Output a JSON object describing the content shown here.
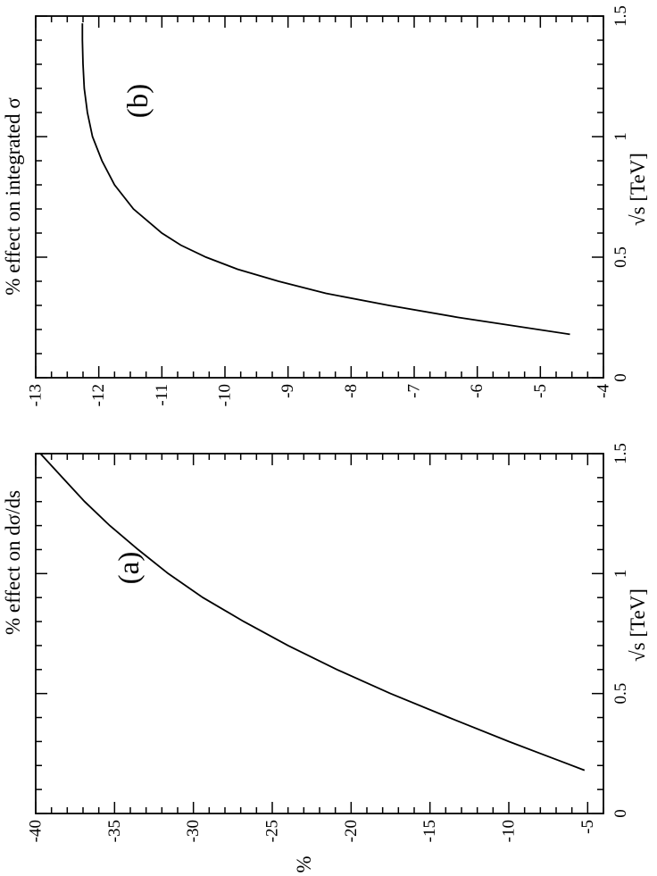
{
  "colors": {
    "background": "#ffffff",
    "ink": "#000000"
  },
  "chart_data": [
    {
      "id": "a",
      "type": "line",
      "panel_label": "(a)",
      "title": "",
      "xlabel": "√s  [TeV]",
      "ylabel": "% effect on dσ/ds",
      "extra_label": "%",
      "xlim": [
        0,
        1.5
      ],
      "ylim": [
        -40,
        -4
      ],
      "x_ticks": [
        0,
        0.5,
        1,
        1.5
      ],
      "y_ticks": [
        -5,
        -10,
        -15,
        -20,
        -25,
        -30,
        -35,
        -40
      ],
      "x_minor_step": 0.1,
      "y_minor_step": 1,
      "grid": false,
      "series": [
        {
          "x": [
            0.18,
            0.25,
            0.3,
            0.4,
            0.5,
            0.6,
            0.7,
            0.8,
            0.9,
            1.0,
            1.1,
            1.2,
            1.3,
            1.4,
            1.5
          ],
          "y": [
            -5.2,
            -8.0,
            -10.0,
            -13.8,
            -17.5,
            -20.9,
            -24.0,
            -26.8,
            -29.4,
            -31.6,
            -33.5,
            -35.3,
            -36.9,
            -38.3,
            -39.7
          ]
        }
      ]
    },
    {
      "id": "b",
      "type": "line",
      "panel_label": "(b)",
      "title": "",
      "xlabel": "√s  [TeV]",
      "ylabel": "% effect on integrated σ",
      "xlim": [
        0,
        1.5
      ],
      "ylim": [
        -13,
        -4
      ],
      "x_ticks": [
        0,
        0.5,
        1,
        1.5
      ],
      "y_ticks": [
        -4,
        -5,
        -6,
        -7,
        -8,
        -9,
        -10,
        -11,
        -12,
        -13
      ],
      "x_minor_step": 0.1,
      "y_minor_step": 0.25,
      "grid": false,
      "series": [
        {
          "x": [
            0.18,
            0.25,
            0.3,
            0.35,
            0.4,
            0.45,
            0.5,
            0.55,
            0.6,
            0.7,
            0.8,
            0.9,
            1.0,
            1.1,
            1.2,
            1.3,
            1.4,
            1.47
          ],
          "y": [
            -4.53,
            -6.3,
            -7.4,
            -8.4,
            -9.15,
            -9.8,
            -10.3,
            -10.7,
            -11.0,
            -11.45,
            -11.75,
            -11.95,
            -12.1,
            -12.18,
            -12.23,
            -12.25,
            -12.26,
            -12.26
          ]
        }
      ]
    }
  ]
}
